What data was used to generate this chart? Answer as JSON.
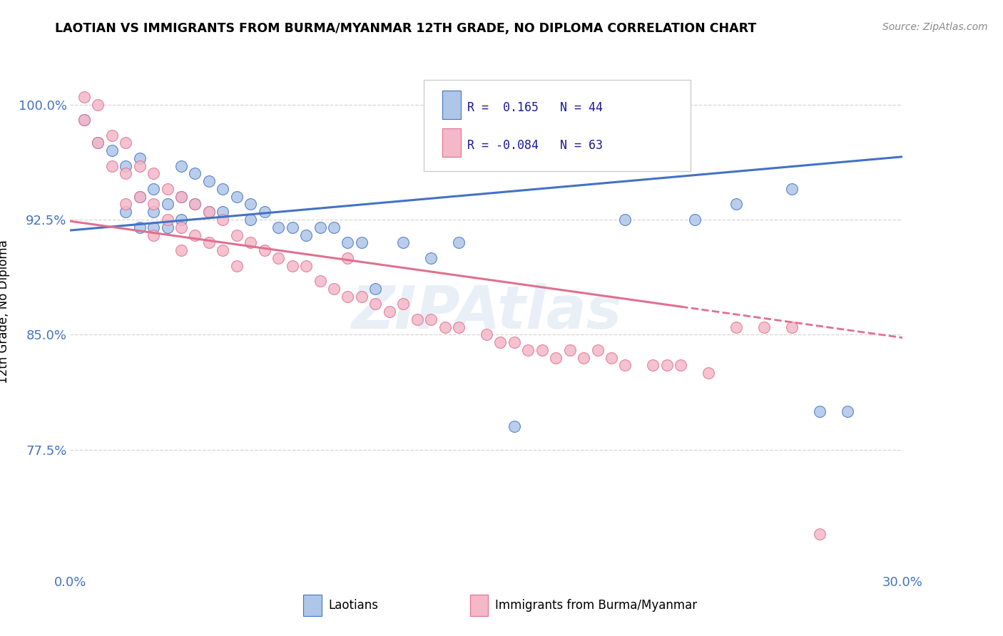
{
  "title": "LAOTIAN VS IMMIGRANTS FROM BURMA/MYANMAR 12TH GRADE, NO DIPLOMA CORRELATION CHART",
  "source": "Source: ZipAtlas.com",
  "ylabel": "12th Grade, No Diploma",
  "xlim": [
    0.0,
    0.3
  ],
  "ylim": [
    0.695,
    1.035
  ],
  "xticks": [
    0.0,
    0.05,
    0.1,
    0.15,
    0.2,
    0.25,
    0.3
  ],
  "xticklabels": [
    "0.0%",
    "",
    "",
    "",
    "",
    "",
    "30.0%"
  ],
  "yticks": [
    0.775,
    0.85,
    0.925,
    1.0
  ],
  "yticklabels": [
    "77.5%",
    "85.0%",
    "92.5%",
    "100.0%"
  ],
  "blue_fill": "#aec6e8",
  "blue_edge": "#4472c4",
  "pink_fill": "#f4b8c8",
  "pink_edge": "#e07090",
  "blue_line_color": "#4472c4",
  "pink_line_color": "#e07090",
  "legend_R1": "0.165",
  "legend_N1": "44",
  "legend_R2": "-0.084",
  "legend_N2": "63",
  "legend_label1": "Laotians",
  "legend_label2": "Immigrants from Burma/Myanmar",
  "watermark": "ZIPAtlas",
  "blue_scatter_x": [
    0.005,
    0.01,
    0.015,
    0.02,
    0.02,
    0.025,
    0.025,
    0.025,
    0.03,
    0.03,
    0.03,
    0.035,
    0.035,
    0.04,
    0.04,
    0.04,
    0.045,
    0.045,
    0.05,
    0.05,
    0.055,
    0.055,
    0.06,
    0.065,
    0.065,
    0.07,
    0.075,
    0.08,
    0.085,
    0.09,
    0.095,
    0.1,
    0.105,
    0.11,
    0.12,
    0.13,
    0.14,
    0.16,
    0.2,
    0.225,
    0.24,
    0.26,
    0.27,
    0.28
  ],
  "blue_scatter_y": [
    0.99,
    0.975,
    0.97,
    0.96,
    0.93,
    0.965,
    0.94,
    0.92,
    0.945,
    0.93,
    0.92,
    0.935,
    0.92,
    0.96,
    0.94,
    0.925,
    0.955,
    0.935,
    0.95,
    0.93,
    0.945,
    0.93,
    0.94,
    0.935,
    0.925,
    0.93,
    0.92,
    0.92,
    0.915,
    0.92,
    0.92,
    0.91,
    0.91,
    0.88,
    0.91,
    0.9,
    0.91,
    0.79,
    0.925,
    0.925,
    0.935,
    0.945,
    0.8,
    0.8
  ],
  "pink_scatter_x": [
    0.005,
    0.005,
    0.01,
    0.01,
    0.015,
    0.015,
    0.02,
    0.02,
    0.02,
    0.025,
    0.025,
    0.03,
    0.03,
    0.03,
    0.035,
    0.035,
    0.04,
    0.04,
    0.04,
    0.045,
    0.045,
    0.05,
    0.05,
    0.055,
    0.055,
    0.06,
    0.06,
    0.065,
    0.07,
    0.075,
    0.08,
    0.085,
    0.09,
    0.095,
    0.1,
    0.1,
    0.105,
    0.11,
    0.115,
    0.12,
    0.125,
    0.13,
    0.135,
    0.14,
    0.15,
    0.155,
    0.16,
    0.165,
    0.17,
    0.175,
    0.18,
    0.185,
    0.19,
    0.195,
    0.2,
    0.21,
    0.215,
    0.22,
    0.23,
    0.24,
    0.25,
    0.26,
    0.27
  ],
  "pink_scatter_y": [
    1.005,
    0.99,
    1.0,
    0.975,
    0.98,
    0.96,
    0.975,
    0.955,
    0.935,
    0.96,
    0.94,
    0.955,
    0.935,
    0.915,
    0.945,
    0.925,
    0.94,
    0.92,
    0.905,
    0.935,
    0.915,
    0.93,
    0.91,
    0.925,
    0.905,
    0.915,
    0.895,
    0.91,
    0.905,
    0.9,
    0.895,
    0.895,
    0.885,
    0.88,
    0.9,
    0.875,
    0.875,
    0.87,
    0.865,
    0.87,
    0.86,
    0.86,
    0.855,
    0.855,
    0.85,
    0.845,
    0.845,
    0.84,
    0.84,
    0.835,
    0.84,
    0.835,
    0.84,
    0.835,
    0.83,
    0.83,
    0.83,
    0.83,
    0.825,
    0.855,
    0.855,
    0.855,
    0.72
  ],
  "blue_line_x0": 0.0,
  "blue_line_y0": 0.918,
  "blue_line_x1": 0.3,
  "blue_line_y1": 0.966,
  "pink_line_x0": 0.0,
  "pink_line_y0": 0.924,
  "pink_line_x1": 0.3,
  "pink_line_y1": 0.848
}
